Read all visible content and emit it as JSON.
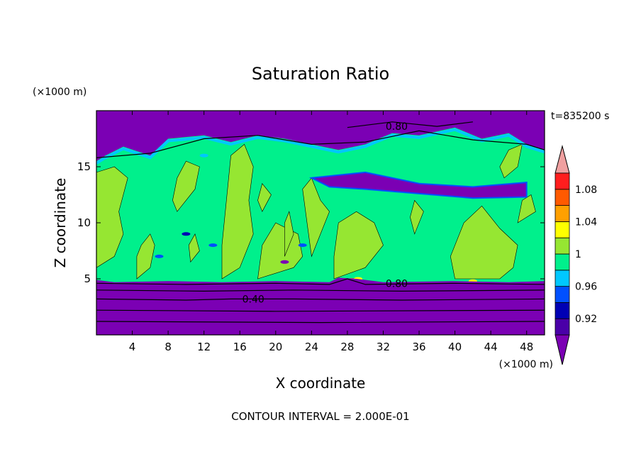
{
  "chart_data": {
    "type": "heatmap",
    "title": "Saturation Ratio",
    "xlabel": "X coordinate",
    "ylabel": "Z coordinate",
    "x_unit": "(×1000 m)",
    "y_unit": "(×1000 m)",
    "time_label": "t=835200 s",
    "footer": "CONTOUR INTERVAL = 2.000E-01",
    "xlim": [
      0,
      50
    ],
    "ylim": [
      0,
      20
    ],
    "x_ticks": [
      4,
      8,
      12,
      16,
      20,
      24,
      28,
      32,
      36,
      40,
      44,
      48
    ],
    "y_ticks": [
      5,
      10,
      15
    ],
    "contour_labels": [
      {
        "text": "0.40",
        "x": 17.5,
        "z": 3.2
      },
      {
        "text": "0.80",
        "x": 33.5,
        "z": 4.6
      },
      {
        "text": "0.80",
        "x": 33.5,
        "z": 18.6
      }
    ],
    "colorbar": {
      "labels": [
        "1.08",
        "1.04",
        "1",
        "0.96",
        "0.92"
      ],
      "levels": [
        0.9,
        0.92,
        0.94,
        0.96,
        0.98,
        1.0,
        1.02,
        1.04,
        1.06,
        1.08,
        1.1
      ],
      "colors": [
        "#4a00a8",
        "#0000b4",
        "#0050ff",
        "#00c8ff",
        "#00f08c",
        "#96e632",
        "#ffff00",
        "#ffa000",
        "#ff5a00",
        "#ff1e1e"
      ],
      "below_color": "#7b00b4",
      "above_color": "#f0a0a0"
    },
    "regions": {
      "lower_layer_color": "#7b00b4",
      "upper_layer_color": "#7b00b4",
      "background_color": "#00f08c",
      "patch_color": "#96e632"
    }
  }
}
